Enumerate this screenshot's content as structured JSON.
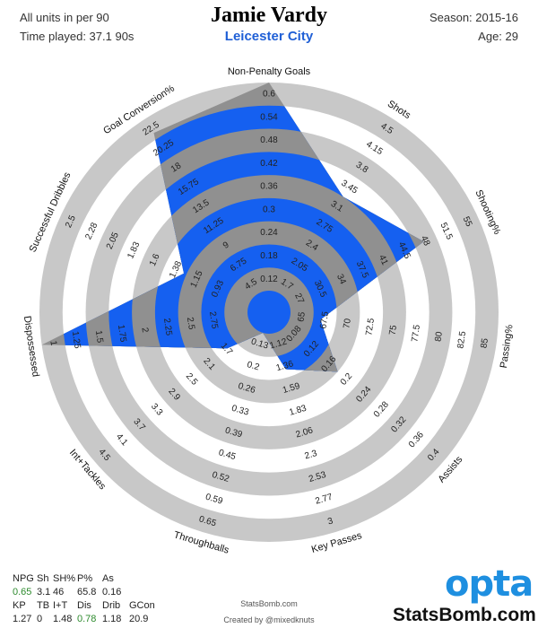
{
  "header": {
    "units": "All units in per 90",
    "time_played": "Time played: 37.1 90s",
    "title": "Jamie Vardy",
    "team": "Leicester City",
    "season": "Season: 2015-16",
    "age": "Age: 29"
  },
  "chart_data": {
    "type": "radar",
    "series": [
      {
        "name": "Jamie Vardy",
        "color": "#1560f0"
      }
    ],
    "axes": [
      {
        "label": "Non-Penalty Goals",
        "value": 0.65,
        "ticks": [
          "0.12",
          "0.18",
          "0.24",
          "0.3",
          "0.36",
          "0.42",
          "0.48",
          "0.54",
          "0.6"
        ]
      },
      {
        "label": "Shots",
        "value": 3.1,
        "ticks": [
          "1.7",
          "2.05",
          "2.4",
          "2.75",
          "3.1",
          "3.45",
          "3.8",
          "4.15",
          "4.5"
        ]
      },
      {
        "label": "Shooting%",
        "value": 46,
        "ticks": [
          "27",
          "30.5",
          "34",
          "37.5",
          "41",
          "44.5",
          "48",
          "51.5",
          "55"
        ]
      },
      {
        "label": "Passing%",
        "value": 65.8,
        "ticks": [
          "65",
          "67.5",
          "70",
          "72.5",
          "75",
          "77.5",
          "80",
          "82.5",
          "85"
        ]
      },
      {
        "label": "Assists",
        "value": 0.16,
        "ticks": [
          "0.08",
          "0.12",
          "0.16",
          "0.2",
          "0.24",
          "0.28",
          "0.32",
          "0.36",
          "0.4"
        ]
      },
      {
        "label": "Key Passes",
        "value": 1.27,
        "ticks": [
          "1.12",
          "1.36",
          "1.59",
          "1.83",
          "2.06",
          "2.3",
          "2.53",
          "2.77",
          "3"
        ]
      },
      {
        "label": "Throughballs",
        "value": 0,
        "ticks": [
          "0.13",
          "0.2",
          "0.26",
          "0.33",
          "0.39",
          "0.45",
          "0.52",
          "0.59",
          "0.65"
        ]
      },
      {
        "label": "Int+Tackles",
        "value": 1.48,
        "ticks": [
          "1.7",
          "2.1",
          "2.5",
          "2.9",
          "3.3",
          "3.7",
          "4.1",
          "4.5"
        ]
      },
      {
        "label": "Dispossessed",
        "value": 0.78,
        "ticks": [
          "2.75",
          "2.5",
          "2.25",
          "2",
          "1.75",
          "1.5",
          "1.25",
          "1"
        ]
      },
      {
        "label": "Successful Dribbles",
        "value": 1.18,
        "ticks": [
          "0.93",
          "1.15",
          "1.38",
          "1.6",
          "1.83",
          "2.05",
          "2.28",
          "2.5"
        ]
      },
      {
        "label": "Goal Conversion%",
        "value": 20.9,
        "ticks": [
          "4.5",
          "6.75",
          "9",
          "11.25",
          "13.5",
          "15.75",
          "18",
          "20.25",
          "22.5"
        ]
      }
    ]
  },
  "stats_table": {
    "row1_headers": [
      "NPG",
      "Sh",
      "SH%",
      "P%",
      "As"
    ],
    "row1_values": [
      "0.65",
      "3.1",
      "46",
      "65.8",
      "0.16"
    ],
    "row2_headers": [
      "KP",
      "TB",
      "I+T",
      "Dis",
      "Drib",
      "GCon"
    ],
    "row2_values": [
      "1.27",
      "0",
      "1.48",
      "0.78",
      "1.18",
      "20.9"
    ]
  },
  "credits": {
    "site": "StatsBomb.com",
    "created_by": "Created by @mixedknuts",
    "opta_logo": "opta",
    "brand": "StatsBomb.com"
  }
}
